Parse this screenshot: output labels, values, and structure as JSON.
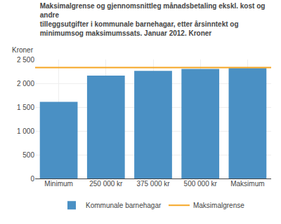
{
  "chart_data": {
    "type": "bar",
    "title": "Maksimalgrense og gjennomsnittleg månadsbetaling ekskl. kost og andre\ntilleggsutgifter i kommunale barnehagar, etter årsinntekt og minimumsog maksimumssats. Januar 2012. Kroner",
    "ylabel": "Kroner",
    "categories": [
      "Minimum",
      "250 000 kr",
      "375 000 kr",
      "500 000 kr",
      "Maksimum"
    ],
    "series": [
      {
        "name": "Kommunale barnehagar",
        "type": "bar",
        "color": "#4a90c4",
        "values": [
          1610,
          2160,
          2260,
          2300,
          2320
        ]
      },
      {
        "name": "Maksimalgrense",
        "type": "hline",
        "color": "#f5a623",
        "value": 2330
      }
    ],
    "ylim": [
      0,
      2500
    ],
    "yticks": [
      0,
      500,
      {
        "value": 1000,
        "label": "1 000"
      },
      {
        "value": 1500,
        "label": "1 500"
      },
      {
        "value": 2000,
        "label": "2 000"
      },
      {
        "value": 2500,
        "label": "2 500"
      }
    ],
    "grid": true,
    "legend": "bottom"
  }
}
